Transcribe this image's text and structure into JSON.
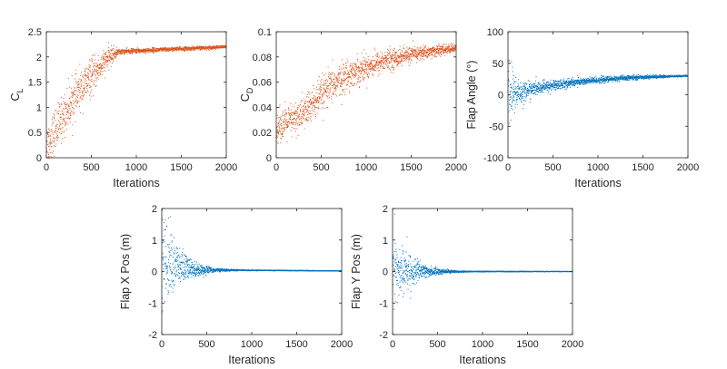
{
  "chart_data": [
    {
      "id": "cl",
      "type": "scatter",
      "title": "",
      "xlabel": "Iterations",
      "ylabel": "C",
      "ylabel_sub": "L",
      "xlim": [
        0,
        2000
      ],
      "ylim": [
        0,
        2.5
      ],
      "xticks": [
        "0",
        "500",
        "1000",
        "1500",
        "2000"
      ],
      "yticks": [
        "0",
        "0.5",
        "1",
        "1.5",
        "2",
        "2.5"
      ],
      "grid": false,
      "color": "#D95319",
      "trend": [
        [
          0,
          0.2
        ],
        [
          100,
          0.55
        ],
        [
          200,
          0.85
        ],
        [
          300,
          1.15
        ],
        [
          400,
          1.4
        ],
        [
          500,
          1.6
        ],
        [
          600,
          1.8
        ],
        [
          700,
          2.0
        ],
        [
          800,
          2.1
        ],
        [
          1000,
          2.12
        ],
        [
          1500,
          2.16
        ],
        [
          2000,
          2.2
        ]
      ],
      "spread": [
        [
          0,
          0.45
        ],
        [
          500,
          0.35
        ],
        [
          750,
          0.15
        ],
        [
          800,
          0.05
        ],
        [
          2000,
          0.03
        ]
      ]
    },
    {
      "id": "cd",
      "type": "scatter",
      "title": "",
      "xlabel": "",
      "ylabel": "C",
      "ylabel_sub": "D",
      "xlim": [
        0,
        2000
      ],
      "ylim": [
        0,
        0.1
      ],
      "xticks": [
        "0",
        "500",
        "1000",
        "1500",
        "2000"
      ],
      "yticks": [
        "0",
        "0.02",
        "0.04",
        "0.06",
        "0.08",
        "0.1"
      ],
      "grid": false,
      "color": "#D95319",
      "trend": [
        [
          0,
          0.025
        ],
        [
          200,
          0.03
        ],
        [
          400,
          0.042
        ],
        [
          600,
          0.056
        ],
        [
          800,
          0.066
        ],
        [
          1000,
          0.072
        ],
        [
          1200,
          0.077
        ],
        [
          1500,
          0.082
        ],
        [
          2000,
          0.087
        ]
      ],
      "spread": [
        [
          0,
          0.012
        ],
        [
          500,
          0.014
        ],
        [
          1000,
          0.01
        ],
        [
          1500,
          0.006
        ],
        [
          2000,
          0.003
        ]
      ]
    },
    {
      "id": "flap-angle",
      "type": "scatter",
      "title": "",
      "xlabel": "Iterations",
      "ylabel": "Flap Angle (°)",
      "xlim": [
        0,
        2000
      ],
      "ylim": [
        -100,
        100
      ],
      "xticks": [
        "0",
        "500",
        "1000",
        "1500",
        "2000"
      ],
      "yticks": [
        "-100",
        "-50",
        "0",
        "50",
        "100"
      ],
      "grid": false,
      "color": "#0072BD",
      "trend": [
        [
          0,
          5
        ],
        [
          100,
          2
        ],
        [
          250,
          8
        ],
        [
          500,
          15
        ],
        [
          750,
          20
        ],
        [
          1000,
          23
        ],
        [
          1250,
          26
        ],
        [
          1500,
          28
        ],
        [
          2000,
          30
        ]
      ],
      "spread": [
        [
          0,
          60
        ],
        [
          60,
          35
        ],
        [
          150,
          18
        ],
        [
          300,
          10
        ],
        [
          800,
          6
        ],
        [
          1500,
          3
        ],
        [
          2000,
          1
        ]
      ]
    },
    {
      "id": "flap-x",
      "type": "scatter",
      "title": "",
      "xlabel": "Iterations",
      "ylabel": "Flap X Pos (m)",
      "xlim": [
        0,
        2000
      ],
      "ylim": [
        -2,
        2
      ],
      "xticks": [
        "0",
        "500",
        "1000",
        "1500",
        "2000"
      ],
      "yticks": [
        "-2",
        "-1",
        "0",
        "1",
        "2"
      ],
      "grid": false,
      "color": "#0072BD",
      "trend": [
        [
          0,
          0.4
        ],
        [
          100,
          0.3
        ],
        [
          200,
          0.15
        ],
        [
          400,
          0.05
        ],
        [
          2000,
          0.02
        ]
      ],
      "spread": [
        [
          0,
          1.5
        ],
        [
          100,
          1.0
        ],
        [
          200,
          0.6
        ],
        [
          350,
          0.25
        ],
        [
          600,
          0.05
        ],
        [
          900,
          0.015
        ],
        [
          2000,
          0.005
        ]
      ]
    },
    {
      "id": "flap-y",
      "type": "scatter",
      "title": "",
      "xlabel": "Iterations",
      "ylabel": "Flap Y Pos (m)",
      "xlim": [
        0,
        2000
      ],
      "ylim": [
        -2,
        2
      ],
      "xticks": [
        "0",
        "500",
        "1000",
        "1500",
        "2000"
      ],
      "yticks": [
        "-2",
        "-1",
        "0",
        "1",
        "2"
      ],
      "grid": false,
      "color": "#0072BD",
      "trend": [
        [
          0,
          0.0
        ],
        [
          200,
          0.0
        ],
        [
          2000,
          0.0
        ]
      ],
      "spread": [
        [
          0,
          1.2
        ],
        [
          100,
          0.8
        ],
        [
          200,
          0.5
        ],
        [
          350,
          0.2
        ],
        [
          600,
          0.05
        ],
        [
          900,
          0.012
        ],
        [
          2000,
          0.004
        ]
      ]
    }
  ]
}
